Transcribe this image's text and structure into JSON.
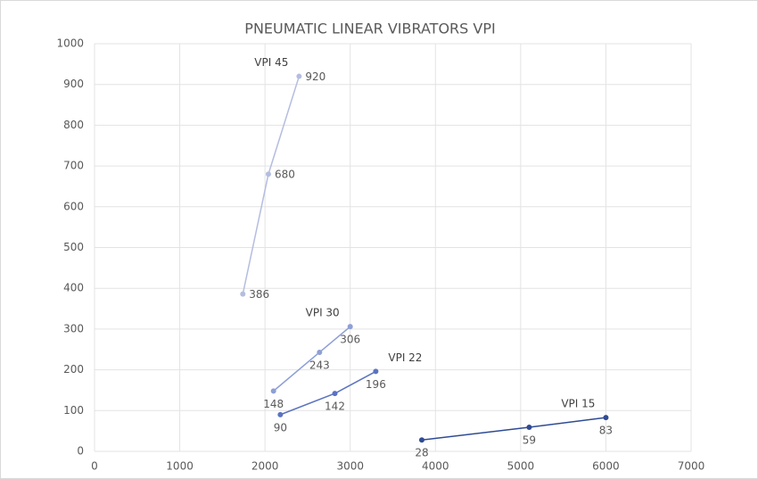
{
  "chart_data": {
    "type": "scatter",
    "title": "PNEUMATIC LINEAR VIBRATORS VPI",
    "xlim": [
      0,
      7000
    ],
    "xticks": [
      0,
      1000,
      2000,
      3000,
      4000,
      5000,
      6000,
      7000
    ],
    "ylim": [
      0,
      1000
    ],
    "yticks": [
      0,
      100,
      200,
      300,
      400,
      500,
      600,
      700,
      800,
      900,
      1000
    ],
    "grid": true,
    "series": [
      {
        "name": "VPI 45",
        "color": "#b4bde0",
        "x": [
          1740,
          2040,
          2400
        ],
        "values": [
          386,
          680,
          920
        ]
      },
      {
        "name": "VPI 30",
        "color": "#8d9fd6",
        "x": [
          2100,
          2640,
          3000
        ],
        "values": [
          148,
          243,
          306
        ]
      },
      {
        "name": "VPI 22",
        "color": "#5a73bf",
        "x": [
          2180,
          2820,
          3300
        ],
        "values": [
          90,
          142,
          196
        ]
      },
      {
        "name": "VPI 15",
        "color": "#2f4b93",
        "x": [
          3840,
          5100,
          6000
        ],
        "values": [
          28,
          59,
          83
        ]
      }
    ]
  }
}
